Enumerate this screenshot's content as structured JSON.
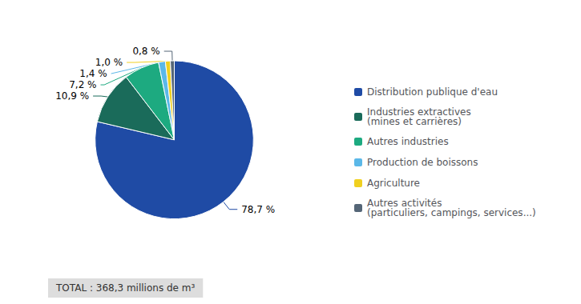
{
  "chart_data": {
    "type": "pie",
    "categories": [
      "Distribution publique d'eau",
      "Industries extractives\n(mines et carrières)",
      "Autres industries",
      "Production de boissons",
      "Agriculture",
      "Autres activités\n(particuliers, campings, services...)"
    ],
    "values": [
      78.7,
      10.9,
      7.2,
      1.4,
      1.0,
      0.8
    ],
    "value_labels": [
      "78,7 %",
      "10,9 %",
      "7,2 %",
      "1,4 %",
      "1,0 %",
      "0,8 %"
    ],
    "colors": [
      "#1F4BA5",
      "#1A6B5A",
      "#1DAA80",
      "#5BB8E8",
      "#F0D020",
      "#556677"
    ],
    "annotation": "TOTAL : 368,3 millions de m³",
    "legend": "right",
    "data_labels": true
  }
}
